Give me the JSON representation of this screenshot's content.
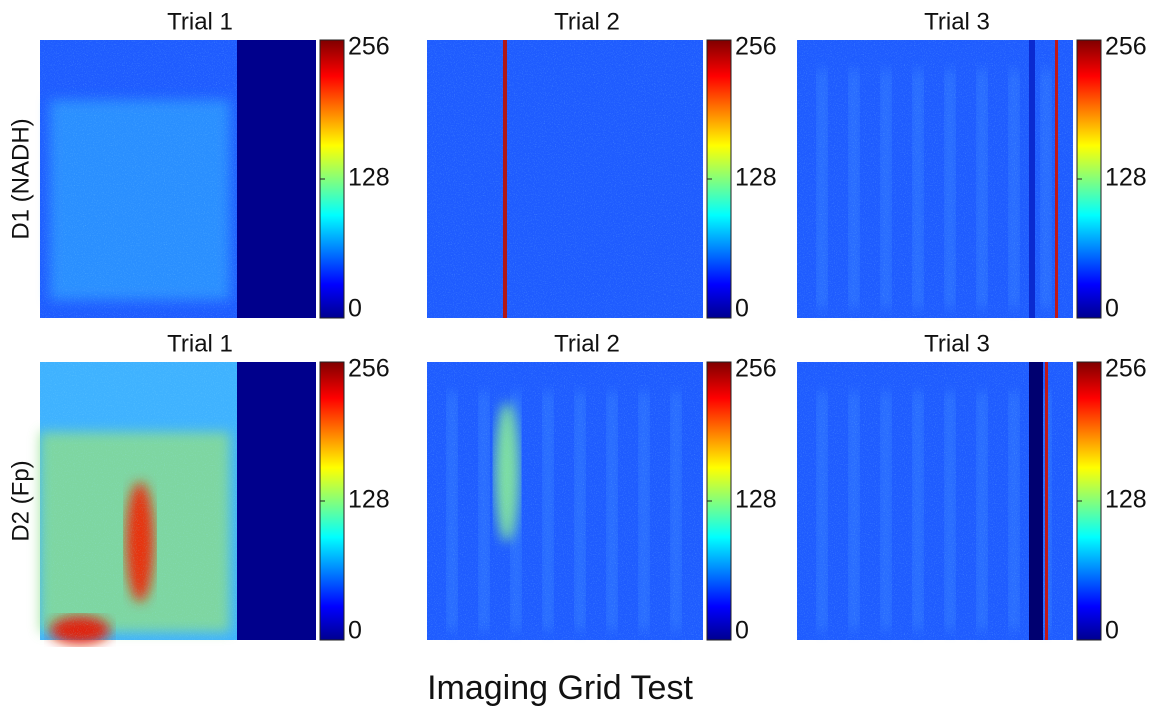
{
  "title": "Imaging Grid Test",
  "rows": [
    {
      "label": "D1 (NADH)",
      "panels": [
        {
          "title": "Trial 1"
        },
        {
          "title": "Trial 2"
        },
        {
          "title": "Trial 3"
        }
      ]
    },
    {
      "label": "D2 (Fp)",
      "panels": [
        {
          "title": "Trial 1"
        },
        {
          "title": "Trial 2"
        },
        {
          "title": "Trial 3"
        }
      ]
    }
  ],
  "colorbar": {
    "lim": [
      0,
      256
    ],
    "ticks": [
      0,
      128,
      256
    ],
    "colormap": "jet"
  }
}
